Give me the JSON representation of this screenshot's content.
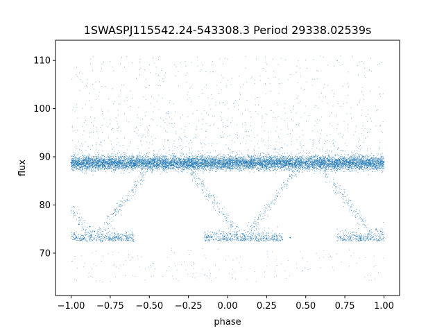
{
  "chart_data": {
    "type": "scatter",
    "title": "1SWASPJ115542.24-543308.3 Period 29338.02539s",
    "xlabel": "phase",
    "ylabel": "flux",
    "xlim": [
      -1.1,
      1.1
    ],
    "ylim": [
      61.2,
      114.2
    ],
    "xticks": [
      -1.0,
      -0.75,
      -0.5,
      -0.25,
      0.0,
      0.25,
      0.5,
      0.75,
      1.0
    ],
    "xtick_labels": [
      "−1.00",
      "−0.75",
      "−0.50",
      "−0.25",
      "0.00",
      "0.25",
      "0.50",
      "0.75",
      "1.00"
    ],
    "yticks": [
      70,
      80,
      90,
      100,
      110
    ],
    "ytick_labels": [
      "70",
      "80",
      "90",
      "100",
      "110"
    ],
    "grid": false,
    "point_color": "#1f77b4",
    "series": [
      {
        "description_points": "dense constant band",
        "x_range": [
          -1.0,
          1.0
        ],
        "y_center": 88.7,
        "points": [
          [
            -1.0,
            88.8
          ],
          [
            -0.9,
            88.9
          ],
          [
            -0.8,
            88.6
          ],
          [
            -0.7,
            88.5
          ],
          [
            -0.6,
            88.7
          ],
          [
            -0.5,
            88.6
          ],
          [
            -0.4,
            88.8
          ],
          [
            -0.3,
            88.7
          ],
          [
            -0.2,
            88.6
          ],
          [
            -0.1,
            88.7
          ],
          [
            0.0,
            88.7
          ],
          [
            0.1,
            88.6
          ],
          [
            0.2,
            88.8
          ],
          [
            0.3,
            88.7
          ],
          [
            0.4,
            88.6
          ],
          [
            0.5,
            88.7
          ],
          [
            0.6,
            88.8
          ],
          [
            0.7,
            88.6
          ],
          [
            0.8,
            88.7
          ],
          [
            0.9,
            88.8
          ],
          [
            1.0,
            88.9
          ]
        ]
      },
      {
        "description_points": "eclipse dips",
        "points": [
          [
            -0.98,
            74.0
          ],
          [
            -0.95,
            76.0
          ],
          [
            -0.92,
            73.0
          ],
          [
            -0.88,
            75.5
          ],
          [
            -0.85,
            74.5
          ],
          [
            -0.8,
            72.5
          ],
          [
            -0.75,
            73.0
          ],
          [
            -0.7,
            74.0
          ],
          [
            -0.65,
            73.5
          ],
          [
            -0.6,
            72.5
          ],
          [
            -0.02,
            73.5
          ],
          [
            0.02,
            74.0
          ],
          [
            0.06,
            75.5
          ],
          [
            0.1,
            74.0
          ],
          [
            0.15,
            73.0
          ],
          [
            0.2,
            72.5
          ],
          [
            0.25,
            73.0
          ],
          [
            0.3,
            73.5
          ],
          [
            0.35,
            72.8
          ],
          [
            0.4,
            73.2
          ],
          [
            0.85,
            73.0
          ],
          [
            0.9,
            74.0
          ],
          [
            0.95,
            75.0
          ],
          [
            0.98,
            74.5
          ]
        ]
      }
    ]
  }
}
